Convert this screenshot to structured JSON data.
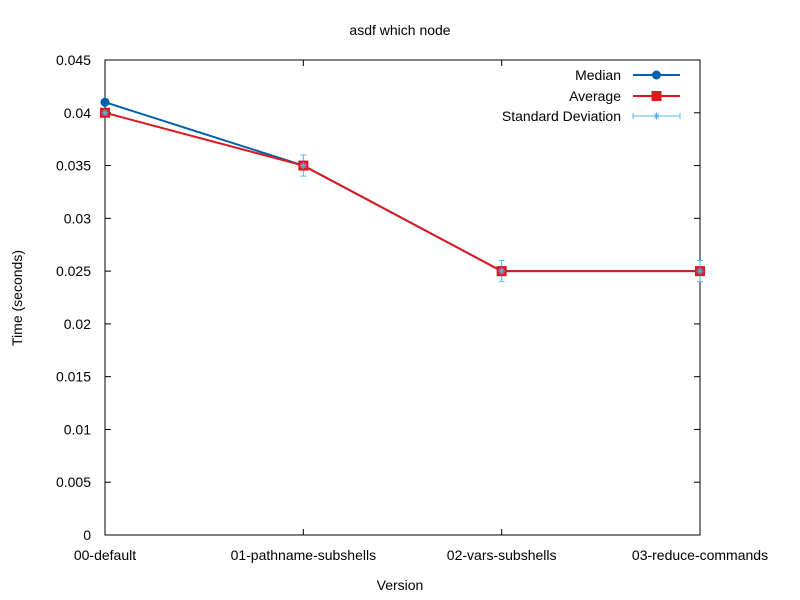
{
  "chart_data": {
    "type": "line",
    "title": "asdf which node",
    "xlabel": "Version",
    "ylabel": "Time (seconds)",
    "categories": [
      "00-default",
      "01-pathname-subshells",
      "02-vars-subshells",
      "03-reduce-commands"
    ],
    "ylim": [
      0,
      0.045
    ],
    "yticks": [
      "0",
      "0.005",
      "0.01",
      "0.015",
      "0.02",
      "0.025",
      "0.03",
      "0.035",
      "0.04",
      "0.045"
    ],
    "grid": false,
    "legend_position": "top-right",
    "series": [
      {
        "name": "Median",
        "values": [
          0.041,
          0.035,
          0.025,
          0.025
        ],
        "color": "#0060ad",
        "marker": "circle"
      },
      {
        "name": "Average",
        "values": [
          0.04,
          0.035,
          0.025,
          0.025
        ],
        "color": "#dd181f",
        "marker": "square"
      },
      {
        "name": "Standard Deviation",
        "color": "#56b4e9",
        "marker": "star",
        "center": [
          0.04,
          0.035,
          0.025,
          0.025
        ],
        "error": [
          0.0003,
          0.001,
          0.001,
          0.001
        ]
      }
    ]
  }
}
